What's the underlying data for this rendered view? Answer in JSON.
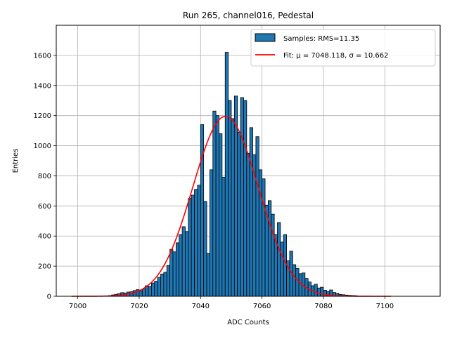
{
  "chart_data": {
    "type": "bar",
    "title": "Run 265, channel016, Pedestal",
    "xlabel": "ADC Counts",
    "ylabel": "Entries",
    "xlim": [
      6993,
      7118
    ],
    "ylim": [
      0,
      1800
    ],
    "xticks": [
      "7000",
      "7020",
      "7040",
      "7060",
      "7080",
      "7100"
    ],
    "yticks": [
      "0",
      "200",
      "400",
      "600",
      "800",
      "1000",
      "1200",
      "1400",
      "1600"
    ],
    "grid": true,
    "legend_position": "top-right",
    "bin_start": 7009,
    "bin_width": 1,
    "histogram": {
      "name": "Samples: RMS=11.35",
      "color": "#1f77b4",
      "edgecolor": "#000000",
      "values": [
        2,
        5,
        9,
        13,
        18,
        24,
        22,
        28,
        30,
        38,
        44,
        36,
        48,
        70,
        66,
        88,
        100,
        126,
        148,
        160,
        205,
        312,
        295,
        355,
        410,
        462,
        430,
        650,
        672,
        710,
        738,
        1140,
        630,
        285,
        840,
        1230,
        1200,
        1080,
        790,
        1620,
        1300,
        1180,
        1330,
        1090,
        1320,
        1300,
        950,
        1120,
        940,
        1060,
        840,
        780,
        605,
        635,
        545,
        410,
        490,
        360,
        410,
        236,
        300,
        210,
        185,
        150,
        155,
        118,
        95,
        70,
        80,
        55,
        60,
        40,
        32,
        42,
        25,
        20,
        12,
        10,
        8,
        6,
        5,
        4
      ]
    },
    "fit": {
      "name": "Fit: μ = 7048.118, σ = 10.662",
      "color": "#ff0000",
      "mu": 7048.118,
      "sigma": 10.662,
      "amplitude": 1195,
      "x_range": [
        6998,
        7102
      ]
    }
  }
}
